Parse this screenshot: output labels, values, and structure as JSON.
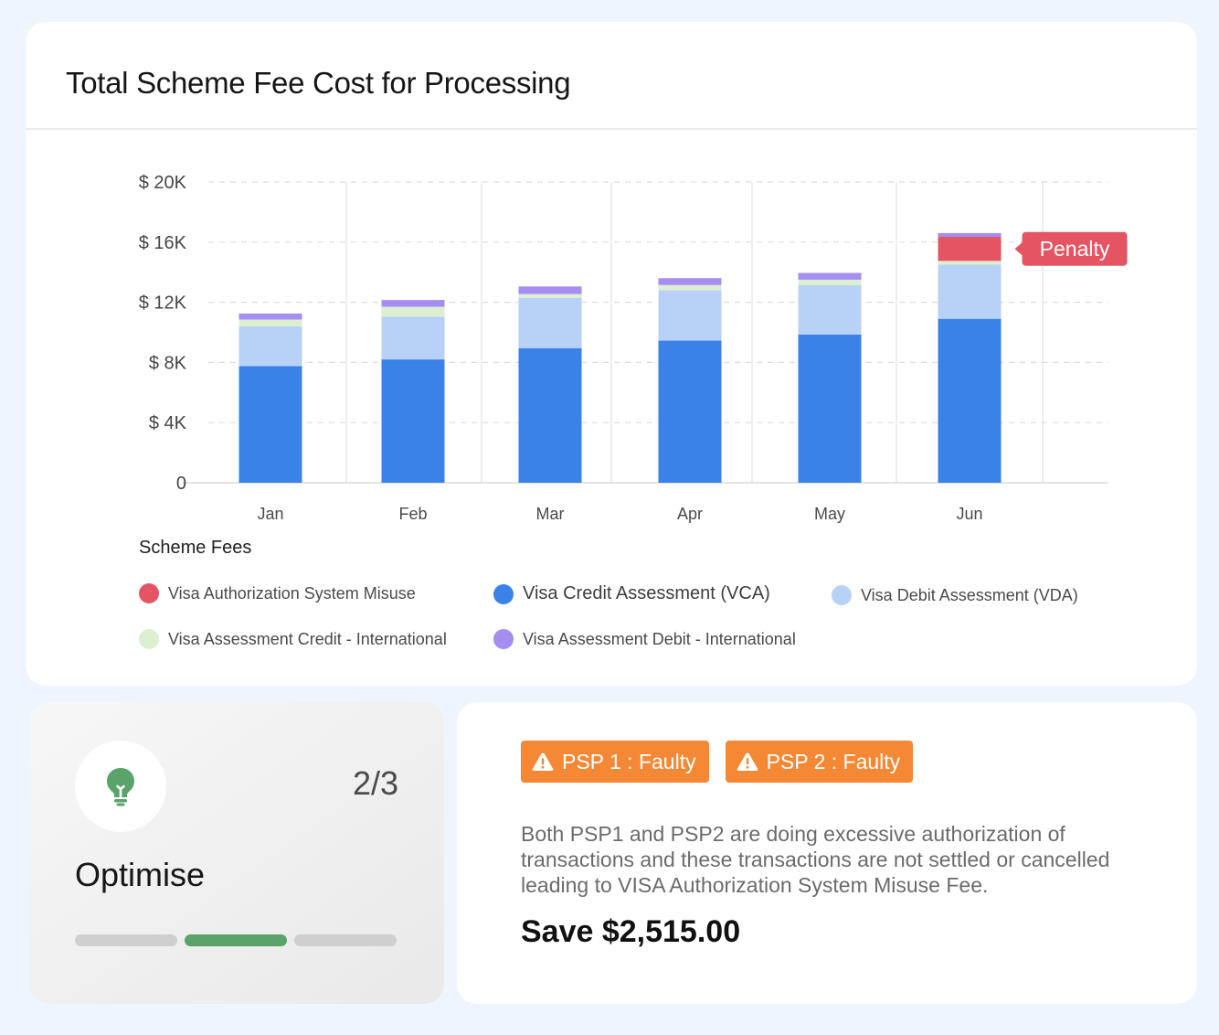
{
  "title": "Total Scheme Fee Cost for Processing",
  "chart_data": {
    "type": "bar",
    "stacked": true,
    "categories": [
      "Jan",
      "Feb",
      "Mar",
      "Apr",
      "May",
      "Jun"
    ],
    "y_ticks": [
      "0",
      "$ 4K",
      "$ 8K",
      "$ 12K",
      "$ 16K",
      "$ 20K"
    ],
    "ylim": [
      0,
      20000
    ],
    "grid": true,
    "series": [
      {
        "name": "Visa Credit Assessment (VCA)",
        "color": "#3a82e8",
        "values": [
          7750,
          8200,
          8950,
          9450,
          9850,
          10900
        ]
      },
      {
        "name": "Visa Debit Assessment (VDA)",
        "color": "#b8d1f6",
        "values": [
          2650,
          2850,
          3350,
          3350,
          3300,
          3600
        ]
      },
      {
        "name": "Visa Assessment Credit - International",
        "color": "#dcefcf",
        "values": [
          450,
          650,
          250,
          350,
          350,
          250
        ]
      },
      {
        "name": "Visa Authorization System Misuse",
        "color": "#e45463",
        "values": [
          0,
          0,
          0,
          0,
          0,
          1600
        ]
      },
      {
        "name": "Visa Assessment Debit - International",
        "color": "#a58df2",
        "values": [
          400,
          450,
          500,
          450,
          450,
          250
        ]
      }
    ],
    "annotation": {
      "label": "Penalty",
      "category": "Jun",
      "series": "Visa Authorization System Misuse",
      "color": "#e45463"
    }
  },
  "legend": {
    "title": "Scheme Fees",
    "items": [
      {
        "label": "Visa Authorization System Misuse",
        "color": "#e45463"
      },
      {
        "label": "Visa Credit Assessment (VCA)",
        "color": "#3a82e8"
      },
      {
        "label": "Visa Debit Assessment (VDA)",
        "color": "#b8d1f6"
      },
      {
        "label": "Visa Assessment Credit - International",
        "color": "#dcefcf"
      },
      {
        "label": "Visa Assessment Debit - International",
        "color": "#a58df2"
      }
    ]
  },
  "optimise": {
    "icon": "lightbulb-icon",
    "label": "Optimise",
    "step_text": "2/3",
    "current_step": 2,
    "total_steps": 3,
    "accent": "#5aa36b"
  },
  "insight": {
    "badges": [
      {
        "icon": "warning-icon",
        "label": "PSP 1 : Faulty"
      },
      {
        "icon": "warning-icon",
        "label": "PSP 2 : Faulty"
      }
    ],
    "badge_color": "#f58834",
    "description": "Both PSP1 and PSP2 are doing excessive authorization of transactions and these transactions are not settled or cancelled leading to VISA Authorization System Misuse Fee.",
    "savings": "Save $2,515.00"
  }
}
